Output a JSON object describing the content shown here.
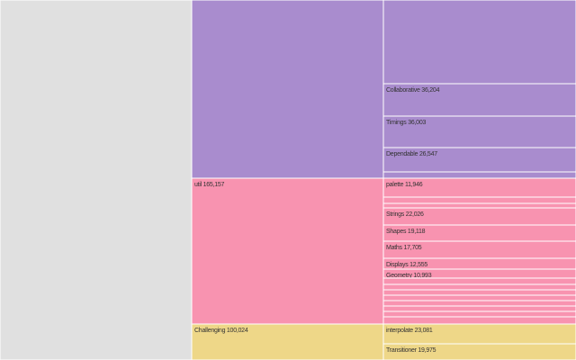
{
  "chart_data": {
    "type": "treemap",
    "colors": {
      "gray": "#e0e0e0",
      "purple": "#a98cce",
      "pink": "#f893b0",
      "yellow": "#eed788"
    },
    "groups": [
      {
        "key": "left",
        "color": "gray",
        "children": [
          {
            "label": "",
            "value": 0
          }
        ]
      },
      {
        "key": "top",
        "color": "purple",
        "children": [
          {
            "label": "",
            "value": 0
          },
          {
            "label": "Collaborative",
            "value": 36204,
            "value_label": "36,204"
          },
          {
            "label": "Timings",
            "value": 36003,
            "value_label": "36,003"
          },
          {
            "label": "Dependable",
            "value": 26547,
            "value_label": "26,547"
          },
          {
            "label": "",
            "value": 0
          }
        ]
      },
      {
        "key": "util",
        "label": "util",
        "value": 165157,
        "value_label": "165,157",
        "color": "pink",
        "children": [
          {
            "label": "palette",
            "value": 11946,
            "value_label": "11,946"
          },
          {
            "label": "",
            "value": 0
          },
          {
            "label": "",
            "value": 0
          },
          {
            "label": "Strings",
            "value": 22026,
            "value_label": "22,026"
          },
          {
            "label": "Shapes",
            "value": 19118,
            "value_label": "19,118"
          },
          {
            "label": "Maths",
            "value": 17705,
            "value_label": "17,705"
          },
          {
            "label": "Displays",
            "value": 12555,
            "value_label": "12,555"
          },
          {
            "label": "Geometry",
            "value": 10993,
            "value_label": "10,993"
          },
          {
            "label": "",
            "value": 0
          },
          {
            "label": "",
            "value": 0
          },
          {
            "label": "",
            "value": 0
          },
          {
            "label": "",
            "value": 0
          },
          {
            "label": "",
            "value": 0
          },
          {
            "label": "",
            "value": 0
          },
          {
            "label": "",
            "value": 0
          },
          {
            "label": "",
            "value": 0
          }
        ]
      },
      {
        "key": "challenging",
        "label": "Challenging",
        "value": 100024,
        "value_label": "100,024",
        "color": "yellow",
        "children": [
          {
            "label": "interpolate",
            "value": 23081,
            "value_label": "23,081"
          },
          {
            "label": "Transitioner",
            "value": 19975,
            "value_label": "19,975"
          }
        ]
      }
    ]
  }
}
